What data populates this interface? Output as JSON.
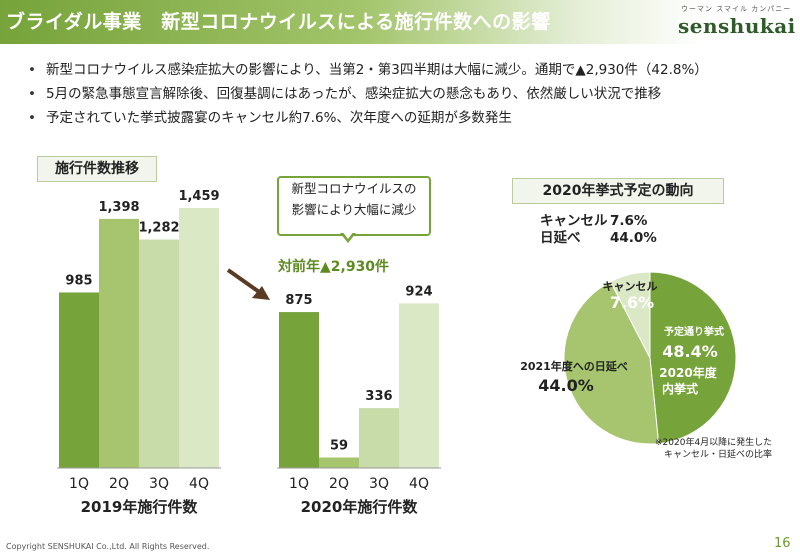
{
  "header": {
    "title": "ブライダル事業　新型コロナウイルスによる施行件数への影響",
    "logo_ruby": "ウーマン スマイル カンパニー",
    "logo_text": "senshukai"
  },
  "bullets": [
    "新型コロナウイルス感染症拡大の影響により、当第2・第3四半期は大幅に減少。通期で▲2,930件（42.8%）",
    "5月の緊急事態宣言解除後、回復基調にはあったが、感染症拡大の懸念もあり、依然厳しい状況で推移",
    "予定されていた挙式披露宴のキャンセル約7.6%、次年度への延期が多数発生"
  ],
  "bar_section_label": "施行件数推移",
  "pie_section_label": "2020年挙式予定の動向",
  "callout_text": "新型コロナウイルスの\n影響により大幅に減少",
  "yoy_text": "対前年▲2,930件",
  "legend": [
    {
      "name": "キャンセル",
      "value": "7.6%"
    },
    {
      "name": "日延べ",
      "value": "44.0%"
    }
  ],
  "footnote": "※2020年4月以降に発生した\n　キャンセル・日延べの比率",
  "copyright": "Copyright SENSHUKAI Co.,Ltd. All Rights Reserved.",
  "page_number": "16",
  "colors": {
    "dark": "#76a33a",
    "mid": "#a6c56e",
    "light": "#c7dca9",
    "lighter": "#dbe8c6",
    "arrow": "#5a3a22"
  },
  "chart_data": [
    {
      "type": "bar",
      "title": "2019年施行件数",
      "categories": [
        "1Q",
        "2Q",
        "3Q",
        "4Q"
      ],
      "values": [
        985,
        1398,
        1282,
        1459
      ],
      "value_labels": [
        "985",
        "1,398",
        "1,282",
        "1,459"
      ],
      "ylim": [
        0,
        1459
      ]
    },
    {
      "type": "bar",
      "title": "2020年施行件数",
      "categories": [
        "1Q",
        "2Q",
        "3Q",
        "4Q"
      ],
      "values": [
        875,
        59,
        336,
        924
      ],
      "value_labels": [
        "875",
        "59",
        "336",
        "924"
      ],
      "ylim": [
        0,
        1459
      ]
    },
    {
      "type": "pie",
      "slices": [
        {
          "label": "予定通り挙式",
          "sublabel": "2020年度\n内挙式",
          "value": 48.4,
          "value_label": "48.4%",
          "color": "#76a33a"
        },
        {
          "label": "2021年度への日延べ",
          "value": 44.0,
          "value_label": "44.0%",
          "color": "#a6c56e"
        },
        {
          "label": "キャンセル",
          "value": 7.6,
          "value_label": "7.6%",
          "color": "#dbe8c6"
        }
      ]
    }
  ]
}
